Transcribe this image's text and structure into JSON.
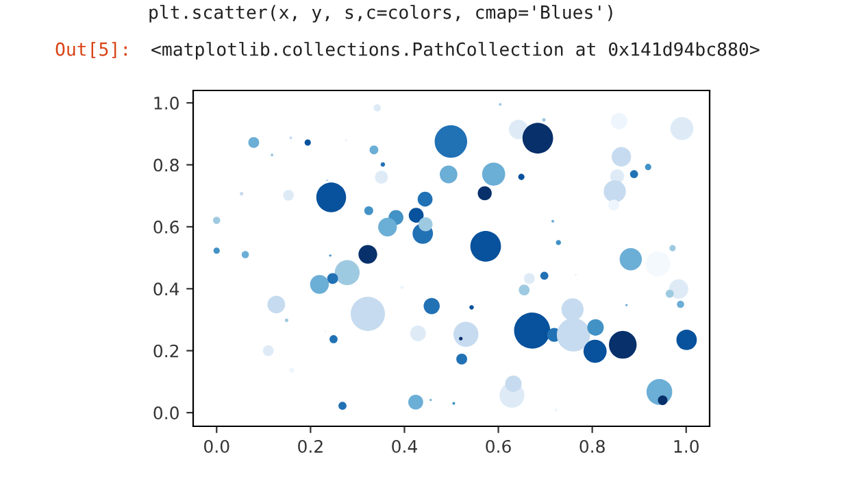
{
  "chart_data": {
    "type": "bubble",
    "annotations": [
      "plt.scatter(x, y, s,c=colors, cmap='Blues')",
      "Out[5]:",
      "<matplotlib.collections.PathCollection at 0x141d94bc880>"
    ],
    "xlim": [
      -0.05,
      1.05
    ],
    "ylim": [
      -0.044,
      1.04
    ],
    "xticks": [
      {
        "value": 0,
        "label": "0.0"
      },
      0.2,
      0.4,
      0.6,
      0.8,
      {
        "value": 1,
        "label": "1.0"
      }
    ],
    "yticks": [
      {
        "value": 0,
        "label": "0.0"
      },
      0.2,
      0.4,
      0.6,
      0.8,
      {
        "value": 1,
        "label": "1.0"
      }
    ],
    "grid": false,
    "legend": false,
    "x": [
      0.079,
      0.158,
      0.194,
      0.276,
      0.342,
      0.335,
      0.118,
      0.354,
      0.351,
      0.053,
      0.153,
      0.244,
      0.235,
      0.324,
      0.382,
      0.444,
      0.425,
      0.364,
      0.439,
      0.445,
      0.0,
      0.0,
      0.061,
      0.322,
      0.242,
      0.278,
      0.247,
      0.219,
      0.395,
      0.127,
      0.322,
      0.458,
      0.149,
      0.232,
      0.429,
      0.249,
      0.11,
      0.16,
      0.268,
      0.424,
      0.456,
      0.604,
      0.499,
      0.643,
      0.684,
      0.697,
      0.857,
      0.991,
      0.862,
      0.919,
      0.889,
      0.853,
      0.848,
      0.846,
      0.494,
      0.59,
      0.649,
      0.571,
      0.716,
      0.728,
      0.573,
      0.882,
      0.971,
      0.94,
      0.666,
      0.698,
      0.655,
      0.984,
      0.965,
      0.988,
      0.873,
      0.543,
      0.531,
      0.52,
      0.672,
      0.719,
      0.758,
      0.76,
      0.807,
      0.806,
      0.865,
      1.001,
      0.522,
      0.629,
      0.632,
      0.943,
      0.95,
      0.505,
      0.723,
      0.765
    ],
    "values": [
      0.872,
      0.887,
      0.872,
      0.879,
      0.984,
      0.848,
      0.832,
      0.801,
      0.76,
      0.707,
      0.702,
      0.695,
      0.75,
      0.652,
      0.63,
      0.689,
      0.637,
      0.599,
      0.578,
      0.608,
      0.621,
      0.523,
      0.51,
      0.511,
      0.507,
      0.452,
      0.433,
      0.414,
      0.404,
      0.349,
      0.319,
      0.344,
      0.298,
      0.262,
      0.256,
      0.237,
      0.2,
      0.137,
      0.022,
      0.034,
      0.041,
      0.995,
      0.875,
      0.914,
      0.886,
      0.945,
      0.941,
      0.917,
      0.826,
      0.793,
      0.77,
      0.763,
      0.714,
      0.67,
      0.769,
      0.77,
      0.761,
      0.708,
      0.618,
      0.549,
      0.537,
      0.495,
      0.531,
      0.48,
      0.433,
      0.442,
      0.396,
      0.399,
      0.384,
      0.35,
      0.347,
      0.34,
      0.253,
      0.239,
      0.265,
      0.251,
      0.333,
      0.251,
      0.275,
      0.198,
      0.219,
      0.235,
      0.173,
      0.056,
      0.093,
      0.067,
      0.04,
      0.03,
      0.009,
      0.445
    ],
    "sizes": [
      0.09,
      0.006,
      0.03,
      0.006,
      0.04,
      0.06,
      0.006,
      0.015,
      0.13,
      0.01,
      0.09,
      0.68,
      0.004,
      0.06,
      0.17,
      0.17,
      0.17,
      0.27,
      0.32,
      0.15,
      0.04,
      0.03,
      0.04,
      0.27,
      0.004,
      0.48,
      0.09,
      0.27,
      0.01,
      0.24,
      0.9,
      0.2,
      0.01,
      0.004,
      0.19,
      0.05,
      0.09,
      0.02,
      0.05,
      0.17,
      0.004,
      0.006,
      0.81,
      0.29,
      0.72,
      0.01,
      0.21,
      0.41,
      0.29,
      0.03,
      0.05,
      0.15,
      0.38,
      0.09,
      0.24,
      0.41,
      0.03,
      0.15,
      0.006,
      0.02,
      0.72,
      0.38,
      0.03,
      0.48,
      0.09,
      0.05,
      0.09,
      0.29,
      0.05,
      0.04,
      0.004,
      0.015,
      0.48,
      0.01,
      1.0,
      0.15,
      0.38,
      0.85,
      0.21,
      0.41,
      0.59,
      0.32,
      0.09,
      0.48,
      0.21,
      0.51,
      0.07,
      0.006,
      0.006,
      0.004
    ],
    "colors": [
      "#6baed6",
      "#c6dbef",
      "#08519c",
      "#eef5fc",
      "#deebf7",
      "#6baed6",
      "#9ecae1",
      "#2171b5",
      "#deebf7",
      "#c6dbef",
      "#deebf7",
      "#08519c",
      "#c6dbef",
      "#4292c6",
      "#4292c6",
      "#2171b5",
      "#08519c",
      "#6baed6",
      "#2171b5",
      "#9ecae1",
      "#9ecae1",
      "#4292c6",
      "#6baed6",
      "#08306b",
      "#4292c6",
      "#9ecae1",
      "#2171b5",
      "#6baed6",
      "#eef5fc",
      "#c6dbef",
      "#c6dbef",
      "#2171b5",
      "#9ecae1",
      "#eef5fc",
      "#deebf7",
      "#2171b5",
      "#deebf7",
      "#eef5fc",
      "#2171b5",
      "#6baed6",
      "#6baed6",
      "#9ecae1",
      "#2171b5",
      "#deebf7",
      "#08306b",
      "#9ecae1",
      "#eef5fc",
      "#deebf7",
      "#c6dbef",
      "#4292c6",
      "#2171b5",
      "#deebf7",
      "#c6dbef",
      "#eef5fc",
      "#6baed6",
      "#6baed6",
      "#08519c",
      "#08306b",
      "#6baed6",
      "#4292c6",
      "#08519c",
      "#6baed6",
      "#9ecae1",
      "#f4f9fe",
      "#deebf7",
      "#2171b5",
      "#9ecae1",
      "#deebf7",
      "#9ecae1",
      "#6baed6",
      "#6baed6",
      "#08519c",
      "#c6dbef",
      "#08306b",
      "#08519c",
      "#2171b5",
      "#c6dbef",
      "#c6dbef",
      "#4292c6",
      "#08519c",
      "#08306b",
      "#08519c",
      "#2171b5",
      "#deebf7",
      "#c6dbef",
      "#6baed6",
      "#08306b",
      "#4292c6",
      "#eef5fc",
      "#eef5fc"
    ]
  }
}
